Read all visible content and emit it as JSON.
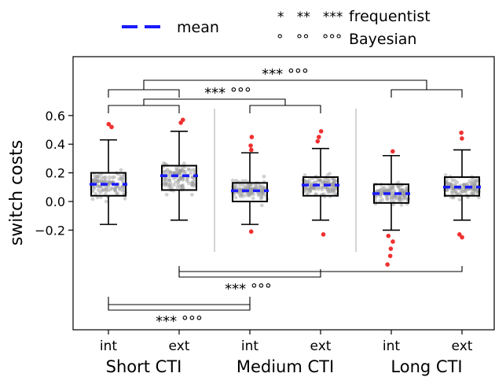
{
  "chart_data": {
    "type": "box",
    "ylabel": "switch costs",
    "ylim": [
      -0.9,
      1.02
    ],
    "yticks": [
      -0.2,
      0.0,
      0.2,
      0.4,
      0.6
    ],
    "ytick_labels": [
      "−0.2",
      "0.0",
      "0.2",
      "0.4",
      "0.6"
    ],
    "grid": false,
    "legend": {
      "placement": "top",
      "mean_label": "mean",
      "frequentist_symbols": "*   **   ***",
      "frequentist_label": "frequentist",
      "bayesian_symbols": "°   °°   °°°",
      "bayesian_label": "Bayesian"
    },
    "groups": [
      "Short CTI",
      "Medium CTI",
      "Long CTI"
    ],
    "tick_labels": [
      "int",
      "ext",
      "int",
      "ext",
      "int",
      "ext"
    ],
    "mean_color": "#1a1aff",
    "outlier_color": "#f03030",
    "point_color": "#999999",
    "boxes": [
      {
        "group": "Short CTI",
        "label": "int",
        "whisker_low": -0.16,
        "q1": 0.04,
        "median": 0.12,
        "q3": 0.2,
        "whisker_high": 0.43,
        "mean": 0.12,
        "outliers": [
          0.52,
          0.54
        ]
      },
      {
        "group": "Short CTI",
        "label": "ext",
        "whisker_low": -0.13,
        "q1": 0.08,
        "median": 0.17,
        "q3": 0.25,
        "whisker_high": 0.49,
        "mean": 0.18,
        "outliers": [
          0.55,
          0.57
        ]
      },
      {
        "group": "Medium CTI",
        "label": "int",
        "whisker_low": -0.16,
        "q1": 0.0,
        "median": 0.08,
        "q3": 0.13,
        "whisker_high": 0.34,
        "mean": 0.075,
        "outliers": [
          0.36,
          0.39,
          0.45,
          -0.21
        ]
      },
      {
        "group": "Medium CTI",
        "label": "ext",
        "whisker_low": -0.13,
        "q1": 0.04,
        "median": 0.11,
        "q3": 0.17,
        "whisker_high": 0.37,
        "mean": 0.115,
        "outliers": [
          0.42,
          0.45,
          0.49,
          -0.23
        ]
      },
      {
        "group": "Long CTI",
        "label": "int",
        "whisker_low": -0.2,
        "q1": -0.01,
        "median": 0.06,
        "q3": 0.12,
        "whisker_high": 0.32,
        "mean": 0.055,
        "outliers": [
          0.35,
          -0.24,
          -0.28,
          -0.33,
          -0.38,
          -0.44
        ]
      },
      {
        "group": "Long CTI",
        "label": "ext",
        "whisker_low": -0.13,
        "q1": 0.04,
        "median": 0.1,
        "q3": 0.17,
        "whisker_high": 0.36,
        "mean": 0.1,
        "outliers": [
          0.44,
          0.48,
          -0.23,
          -0.25
        ]
      }
    ],
    "significance": [
      {
        "label": "***  °°°",
        "description": "Short CTI vs Long CTI",
        "position": "above"
      },
      {
        "label": "***  °°°",
        "description": "Short CTI vs Medium CTI",
        "position": "above"
      },
      {
        "label": "***  °°°",
        "description": "Medium CTI vs Long CTI",
        "position": "below"
      },
      {
        "label": "***  °°°",
        "description": "Short CTI vs Medium CTI",
        "position": "below"
      }
    ]
  }
}
